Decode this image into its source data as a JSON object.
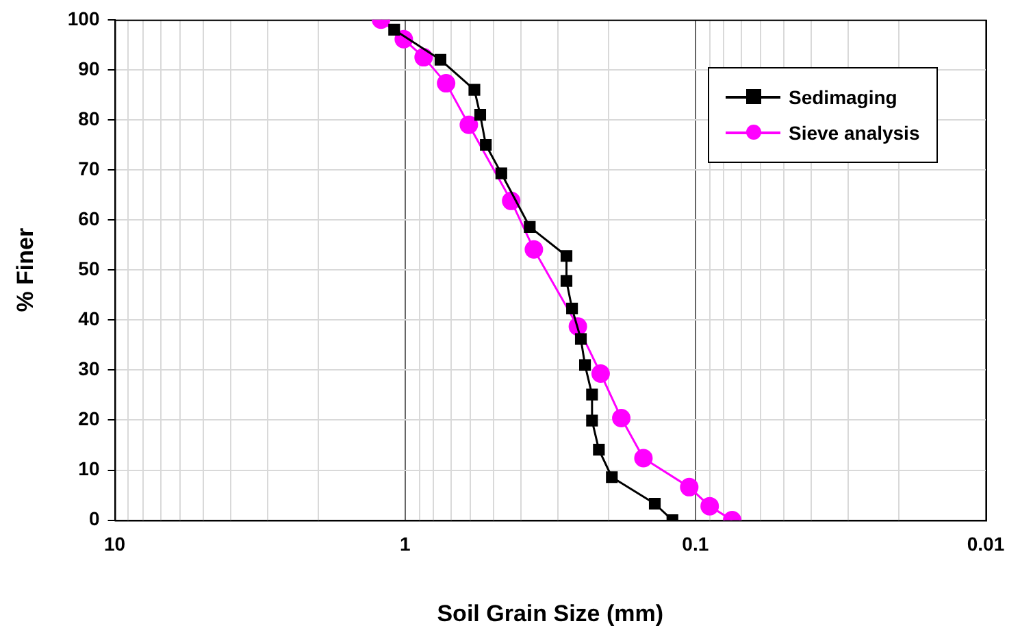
{
  "chart_data": {
    "type": "line",
    "xlabel": "Soil Grain Size (mm)",
    "ylabel": "% Finer",
    "log": "x",
    "xlim": [
      10,
      0.01
    ],
    "xticks": [
      10,
      1,
      0.1,
      0.01
    ],
    "ylim": [
      0,
      100
    ],
    "yticks": [
      0,
      10,
      20,
      30,
      40,
      50,
      60,
      70,
      80,
      90,
      100
    ],
    "grid": true,
    "legend": "top right",
    "line_style": "solid",
    "series": [
      {
        "name": "Sedimaging",
        "color": "#000000",
        "marker": "square",
        "x": [
          1.09,
          0.755,
          0.577,
          0.551,
          0.527,
          0.466,
          0.372,
          0.278,
          0.278,
          0.266,
          0.248,
          0.24,
          0.227,
          0.227,
          0.215,
          0.194,
          0.138,
          0.12
        ],
        "values": [
          98,
          92,
          86,
          81,
          75,
          69.3,
          58.6,
          52.8,
          47.8,
          42.3,
          36.2,
          31,
          25.1,
          19.9,
          14.1,
          8.6,
          3.3,
          0
        ]
      },
      {
        "name": "Sieve analysis",
        "color": "#ff00ff",
        "marker": "circle",
        "x": [
          1.21,
          1.01,
          0.863,
          0.722,
          0.603,
          0.431,
          0.36,
          0.254,
          0.212,
          0.18,
          0.151,
          0.105,
          0.0893,
          0.0747
        ],
        "values": [
          100,
          96.1,
          92.5,
          87.3,
          79,
          63.8,
          54.1,
          38.7,
          29.3,
          20.4,
          12.4,
          6.6,
          2.8,
          0
        ]
      }
    ]
  }
}
